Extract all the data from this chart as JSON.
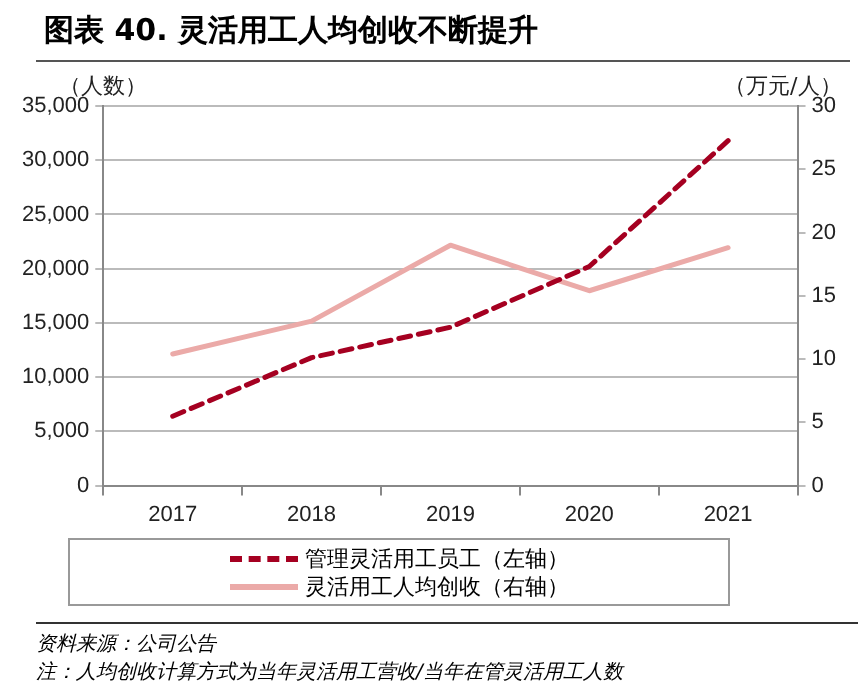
{
  "chart_data": {
    "type": "line",
    "title": "图表 40. 灵活用工人均创收不断提升",
    "ylabel": "（人数）",
    "y2label": "（万元/人）",
    "categories": [
      "2017",
      "2018",
      "2019",
      "2020",
      "2021"
    ],
    "series": [
      {
        "name": "管理灵活用工员工（左轴）",
        "color": "#a50021",
        "values": [
          6400,
          11800,
          14600,
          20200,
          31800
        ],
        "line_style": "dashed"
      },
      {
        "name": "灵活用工人均创收（右轴）",
        "color": "#ebaaa8",
        "values": [
          10.4,
          13.0,
          19.0,
          15.4,
          18.8
        ],
        "axis": "y2",
        "line_style": "solid"
      }
    ],
    "ylim": [
      0,
      35000
    ],
    "yticks": [
      0,
      {
        "value": 5000,
        "label": "5,000"
      },
      {
        "value": 10000,
        "label": "10,000"
      },
      {
        "value": 15000,
        "label": "15,000"
      },
      {
        "value": 20000,
        "label": "20,000"
      },
      {
        "value": 25000,
        "label": "25,000"
      },
      {
        "value": 30000,
        "label": "30,000"
      },
      {
        "value": 35000,
        "label": "35,000"
      }
    ],
    "y2lim": [
      0,
      30
    ],
    "y2ticks": [
      0,
      5,
      10,
      15,
      20,
      25,
      30
    ],
    "grid": "y",
    "legend": "bottom",
    "marker": "none",
    "annotations": [
      "资料来源：公司公告",
      "注：人均创收计算方式为当年灵活用工营收/当年在管灵活用工人数"
    ]
  }
}
